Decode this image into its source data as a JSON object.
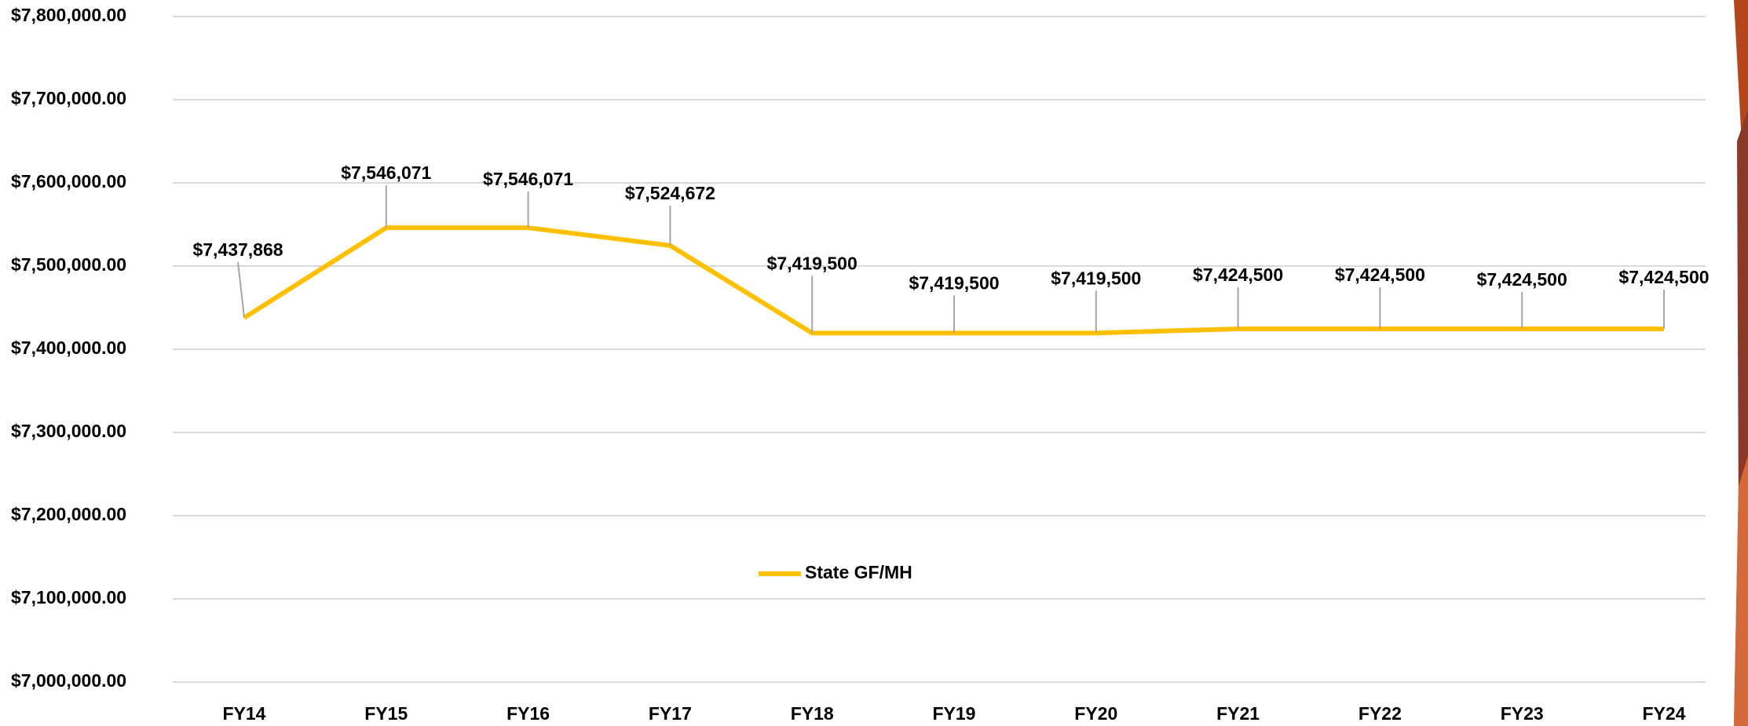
{
  "chart_data": {
    "type": "line",
    "categories": [
      "FY14",
      "FY15",
      "FY16",
      "FY17",
      "FY18",
      "FY19",
      "FY20",
      "FY21",
      "FY22",
      "FY23",
      "FY24"
    ],
    "series": [
      {
        "name": "State GF/MH",
        "color": "#ffc000",
        "values": [
          7437868,
          7546071,
          7546071,
          7524672,
          7419500,
          7419500,
          7419500,
          7424500,
          7424500,
          7424500,
          7424500
        ],
        "value_labels": [
          "$7,437,868",
          "$7,546,071",
          "$7,546,071",
          "$7,524,672",
          "$7,419,500",
          "$7,419,500",
          "$7,419,500",
          "$7,424,500",
          "$7,424,500",
          "$7,424,500",
          "$7,424,500"
        ]
      }
    ],
    "ylim": [
      7000000,
      7800000
    ],
    "yticks": [
      {
        "value": 7000000,
        "label": "$7,000,000.00"
      },
      {
        "value": 7100000,
        "label": "$7,100,000.00"
      },
      {
        "value": 7200000,
        "label": "$7,200,000.00"
      },
      {
        "value": 7300000,
        "label": "$7,300,000.00"
      },
      {
        "value": 7400000,
        "label": "$7,400,000.00"
      },
      {
        "value": 7500000,
        "label": "$7,500,000.00"
      },
      {
        "value": 7600000,
        "label": "$7,600,000.00"
      },
      {
        "value": 7700000,
        "label": "$7,700,000.00"
      },
      {
        "value": 7800000,
        "label": "$7,800,000.00"
      }
    ],
    "grid": true
  }
}
